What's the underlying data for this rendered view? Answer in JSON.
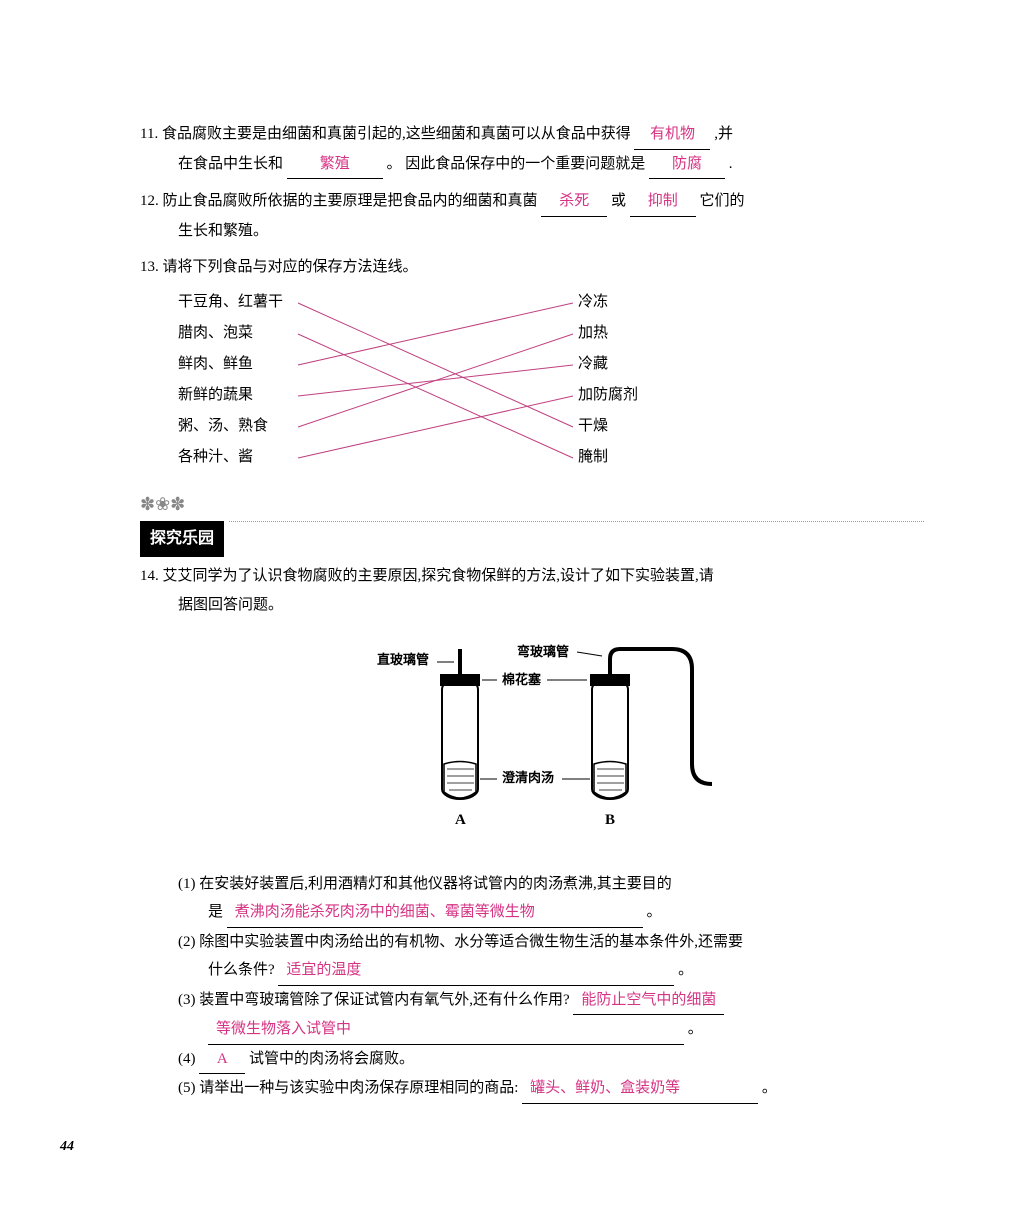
{
  "q11": {
    "num": "11.",
    "text1": "食品腐败主要是由细菌和真菌引起的,这些细菌和真菌可以从食品中获得",
    "ans1": "有机物",
    "text2": ",并",
    "text3": "在食品中生长和",
    "ans2": "繁殖",
    "text4": "。 因此食品保存中的一个重要问题就是",
    "ans3": "防腐",
    "text5": "."
  },
  "q12": {
    "num": "12.",
    "text1": "防止食品腐败所依据的主要原理是把食品内的细菌和真菌",
    "ans1": "杀死",
    "text2": "或",
    "ans2": "抑制",
    "text3": "它们的",
    "text4": "生长和繁殖。"
  },
  "q13": {
    "num": "13.",
    "text": "请将下列食品与对应的保存方法连线。",
    "left": [
      "干豆角、红薯干",
      "腊肉、泡菜",
      "鲜肉、鲜鱼",
      "新鲜的蔬果",
      "粥、汤、熟食",
      "各种汁、酱"
    ],
    "right": [
      "冷冻",
      "加热",
      "冷藏",
      "加防腐剂",
      "干燥",
      "腌制"
    ],
    "connections": [
      [
        0,
        4
      ],
      [
        1,
        5
      ],
      [
        2,
        0
      ],
      [
        3,
        2
      ],
      [
        4,
        1
      ],
      [
        5,
        3
      ]
    ],
    "line_color": "#c04080"
  },
  "section": {
    "title": "探究乐园"
  },
  "q14": {
    "num": "14.",
    "text1": "艾艾同学为了认识食物腐败的主要原因,探究食物保鲜的方法,设计了如下实验装置,请",
    "text2": "据图回答问题。",
    "diagram_labels": {
      "straight": "直玻璃管",
      "curved": "弯玻璃管",
      "cotton": "棉花塞",
      "soup": "澄清肉汤",
      "a": "A",
      "b": "B"
    },
    "sub1": {
      "num": "(1)",
      "text1": "在安装好装置后,利用酒精灯和其他仪器将试管内的肉汤煮沸,其主要目的",
      "text2": "是",
      "ans": "煮沸肉汤能杀死肉汤中的细菌、霉菌等微生物"
    },
    "sub2": {
      "num": "(2)",
      "text": "除图中实验装置中肉汤给出的有机物、水分等适合微生物生活的基本条件外,还需要",
      "text2": "什么条件?",
      "ans": "适宜的温度"
    },
    "sub3": {
      "num": "(3)",
      "text1": "装置中弯玻璃管除了保证试管内有氧气外,还有什么作用?",
      "ans1": "能防止空气中的细菌",
      "ans2": "等微生物落入试管中"
    },
    "sub4": {
      "num": "(4)",
      "ans": "A",
      "text": "试管中的肉汤将会腐败。"
    },
    "sub5": {
      "num": "(5)",
      "text": "请举出一种与该实验中肉汤保存原理相同的商品:",
      "ans": "罐头、鲜奶、盒装奶等"
    }
  },
  "page_num": "44",
  "colors": {
    "answer": "#d63384",
    "text": "#000000",
    "line": "#c04080"
  }
}
